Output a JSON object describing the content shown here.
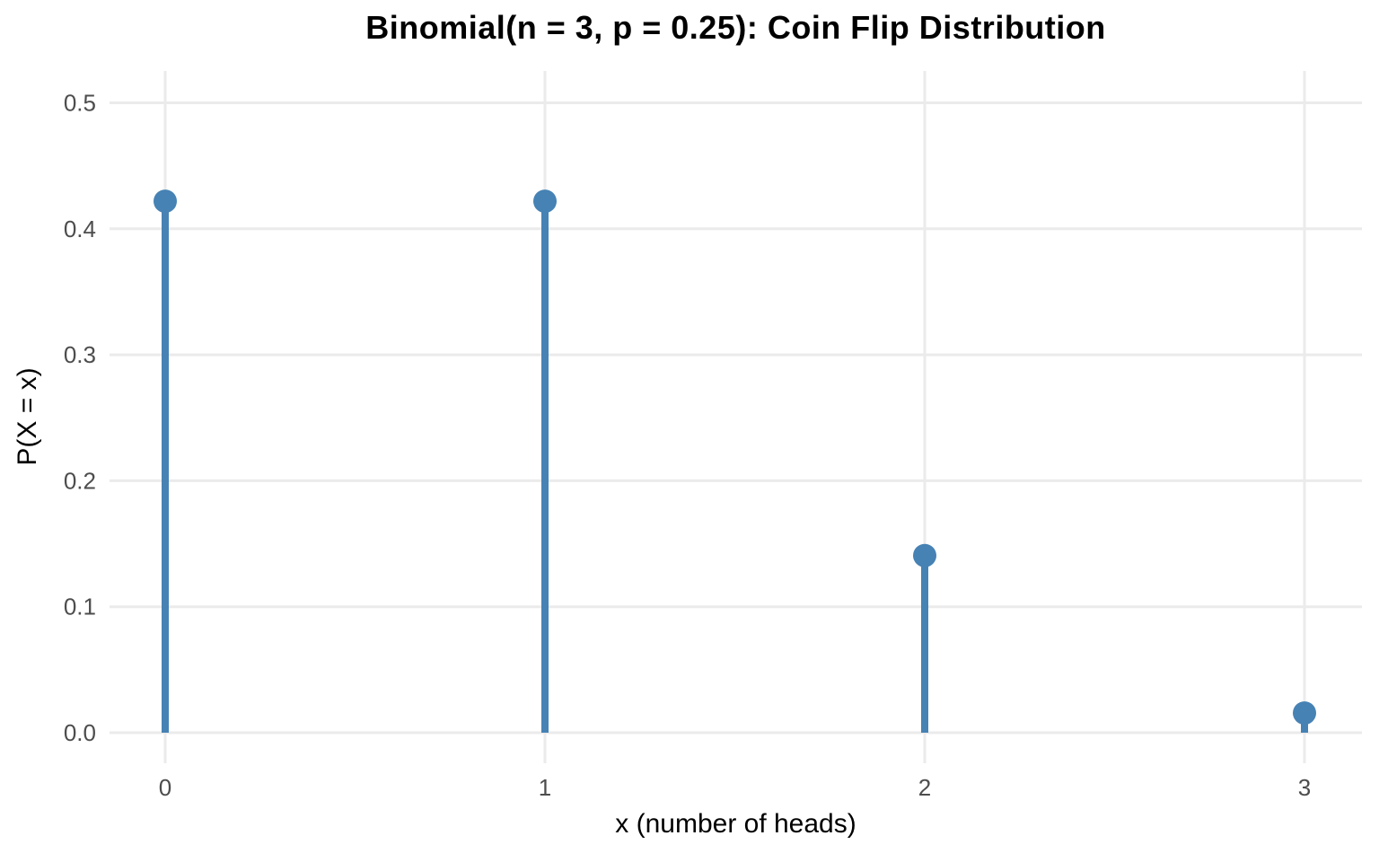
{
  "title": "Binomial(n = 3, p = 0.25): Coin Flip Distribution",
  "chart_data": {
    "type": "scatter",
    "style": "lollipop-stem-pmf",
    "title": "Binomial(n = 3, p = 0.25): Coin Flip Distribution",
    "xlabel": "x (number of heads)",
    "ylabel": "P(X = x)",
    "x": [
      0,
      1,
      2,
      3
    ],
    "y": [
      0.421875,
      0.421875,
      0.140625,
      0.015625
    ],
    "series_name": "P(X = x), Binomial(n = 3, p = 0.25)",
    "xlim": [
      -0.15,
      3.15
    ],
    "ylim": [
      0,
      0.5
    ],
    "xticks": {
      "values": [
        0,
        1,
        2,
        3
      ],
      "labels": [
        "0",
        "1",
        "2",
        "3"
      ]
    },
    "yticks": {
      "values": [
        0.0,
        0.1,
        0.2,
        0.3,
        0.4,
        0.5
      ],
      "labels": [
        "0.0",
        "0.1",
        "0.2",
        "0.3",
        "0.4",
        "0.5"
      ]
    },
    "grid": "major-only",
    "legend": "none",
    "colors": {
      "point": "#4682B4",
      "stem": "#4682B4",
      "gridline": "#EBEBEB",
      "tick_label": "#4D4D4D",
      "axis_title": "#000000",
      "title": "#000000",
      "background": "#FFFFFF"
    }
  }
}
